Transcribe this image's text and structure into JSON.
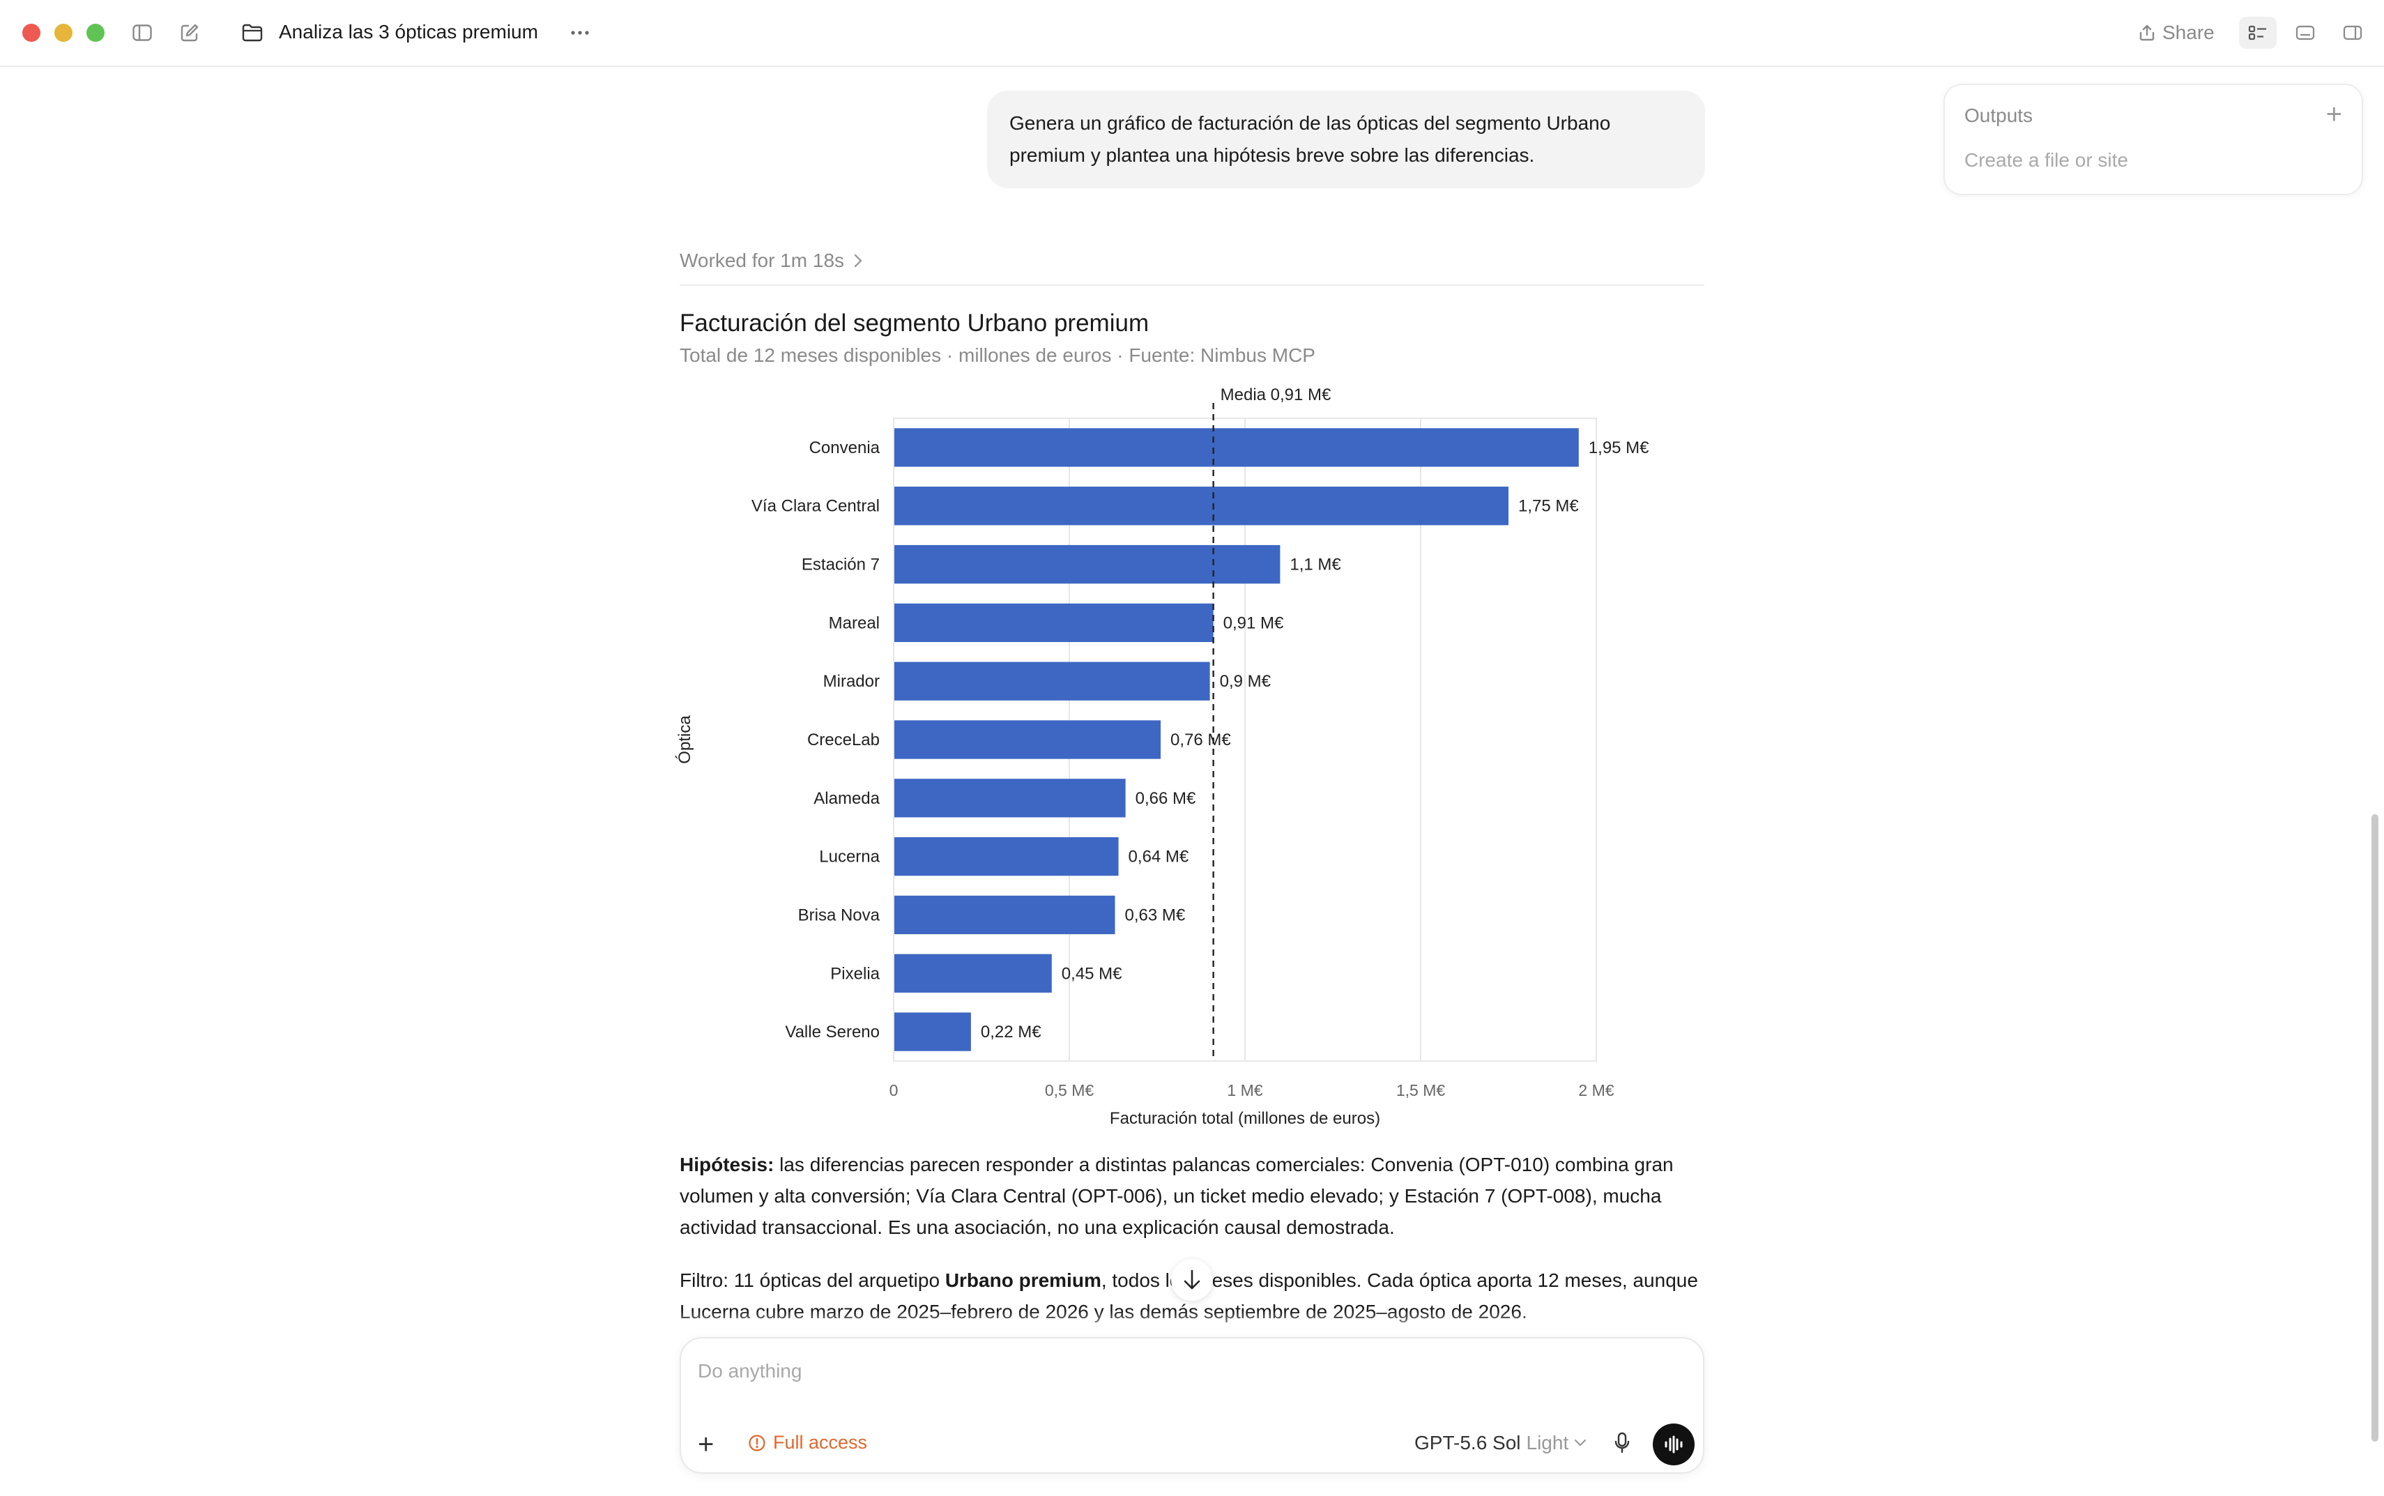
{
  "window": {
    "title": "Analiza las 3 ópticas premium",
    "share_label": "Share"
  },
  "outputs": {
    "title": "Outputs",
    "subtitle": "Create a file or site"
  },
  "conversation": {
    "user_message": "Genera un gráfico de facturación de las ópticas del segmento Urbano premium y plantea una hipótesis breve sobre las diferencias.",
    "worked_label": "Worked for 1m 18s"
  },
  "chart_data": {
    "type": "bar",
    "orientation": "horizontal",
    "title": "Facturación del segmento Urbano premium",
    "subtitle": "Total de 12 meses disponibles · millones de euros · Fuente: Nimbus MCP",
    "xlabel": "Facturación total (millones de euros)",
    "ylabel": "Óptica",
    "categories": [
      "Convenia",
      "Vía Clara Central",
      "Estación 7",
      "Mareal",
      "Mirador",
      "CreceLab",
      "Alameda",
      "Lucerna",
      "Brisa Nova",
      "Pixelia",
      "Valle Sereno"
    ],
    "values": [
      1.95,
      1.75,
      1.1,
      0.91,
      0.9,
      0.76,
      0.66,
      0.64,
      0.63,
      0.45,
      0.22
    ],
    "value_labels": [
      "1,95 M€",
      "1,75 M€",
      "1,1 M€",
      "0,91 M€",
      "0,9 M€",
      "0,76 M€",
      "0,66 M€",
      "0,64 M€",
      "0,63 M€",
      "0,45 M€",
      "0,22 M€"
    ],
    "xlim": [
      0,
      2
    ],
    "xticks": [
      0,
      0.5,
      1,
      1.5,
      2
    ],
    "xtick_labels": [
      "0",
      "0,5 M€",
      "1 M€",
      "1,5 M€",
      "2 M€"
    ],
    "reference_line": {
      "value": 0.91,
      "label": "Media 0,91 M€",
      "style": "dashed"
    },
    "bar_color": "#3d67c3",
    "grid": true
  },
  "analysis": {
    "hypothesis_label": "Hipótesis:",
    "hypothesis_text": " las diferencias parecen responder a distintas palancas comerciales: Convenia (OPT-010) combina gran volumen y alta conversión; Vía Clara Central (OPT-006), un ticket medio elevado; y Estación 7 (OPT-008), mucha actividad transaccional. Es una asociación, no una explicación causal demostrada.",
    "filter_prefix": "Filtro: 11 ópticas del arquetipo ",
    "filter_bold": "Urbano premium",
    "filter_rest": ", todos los meses disponibles. Cada óptica aporta 12 meses, aunque Lucerna cubre marzo de 2025–febrero de 2026 y las demás septiembre de 2025–agosto de 2026."
  },
  "composer": {
    "placeholder": "Do anything",
    "access_label": "Full access",
    "model_name": "GPT-5.6 Sol",
    "model_mode": "Light"
  },
  "colors": {
    "accent_warning": "#e0672c",
    "bar": "#3d67c3"
  }
}
